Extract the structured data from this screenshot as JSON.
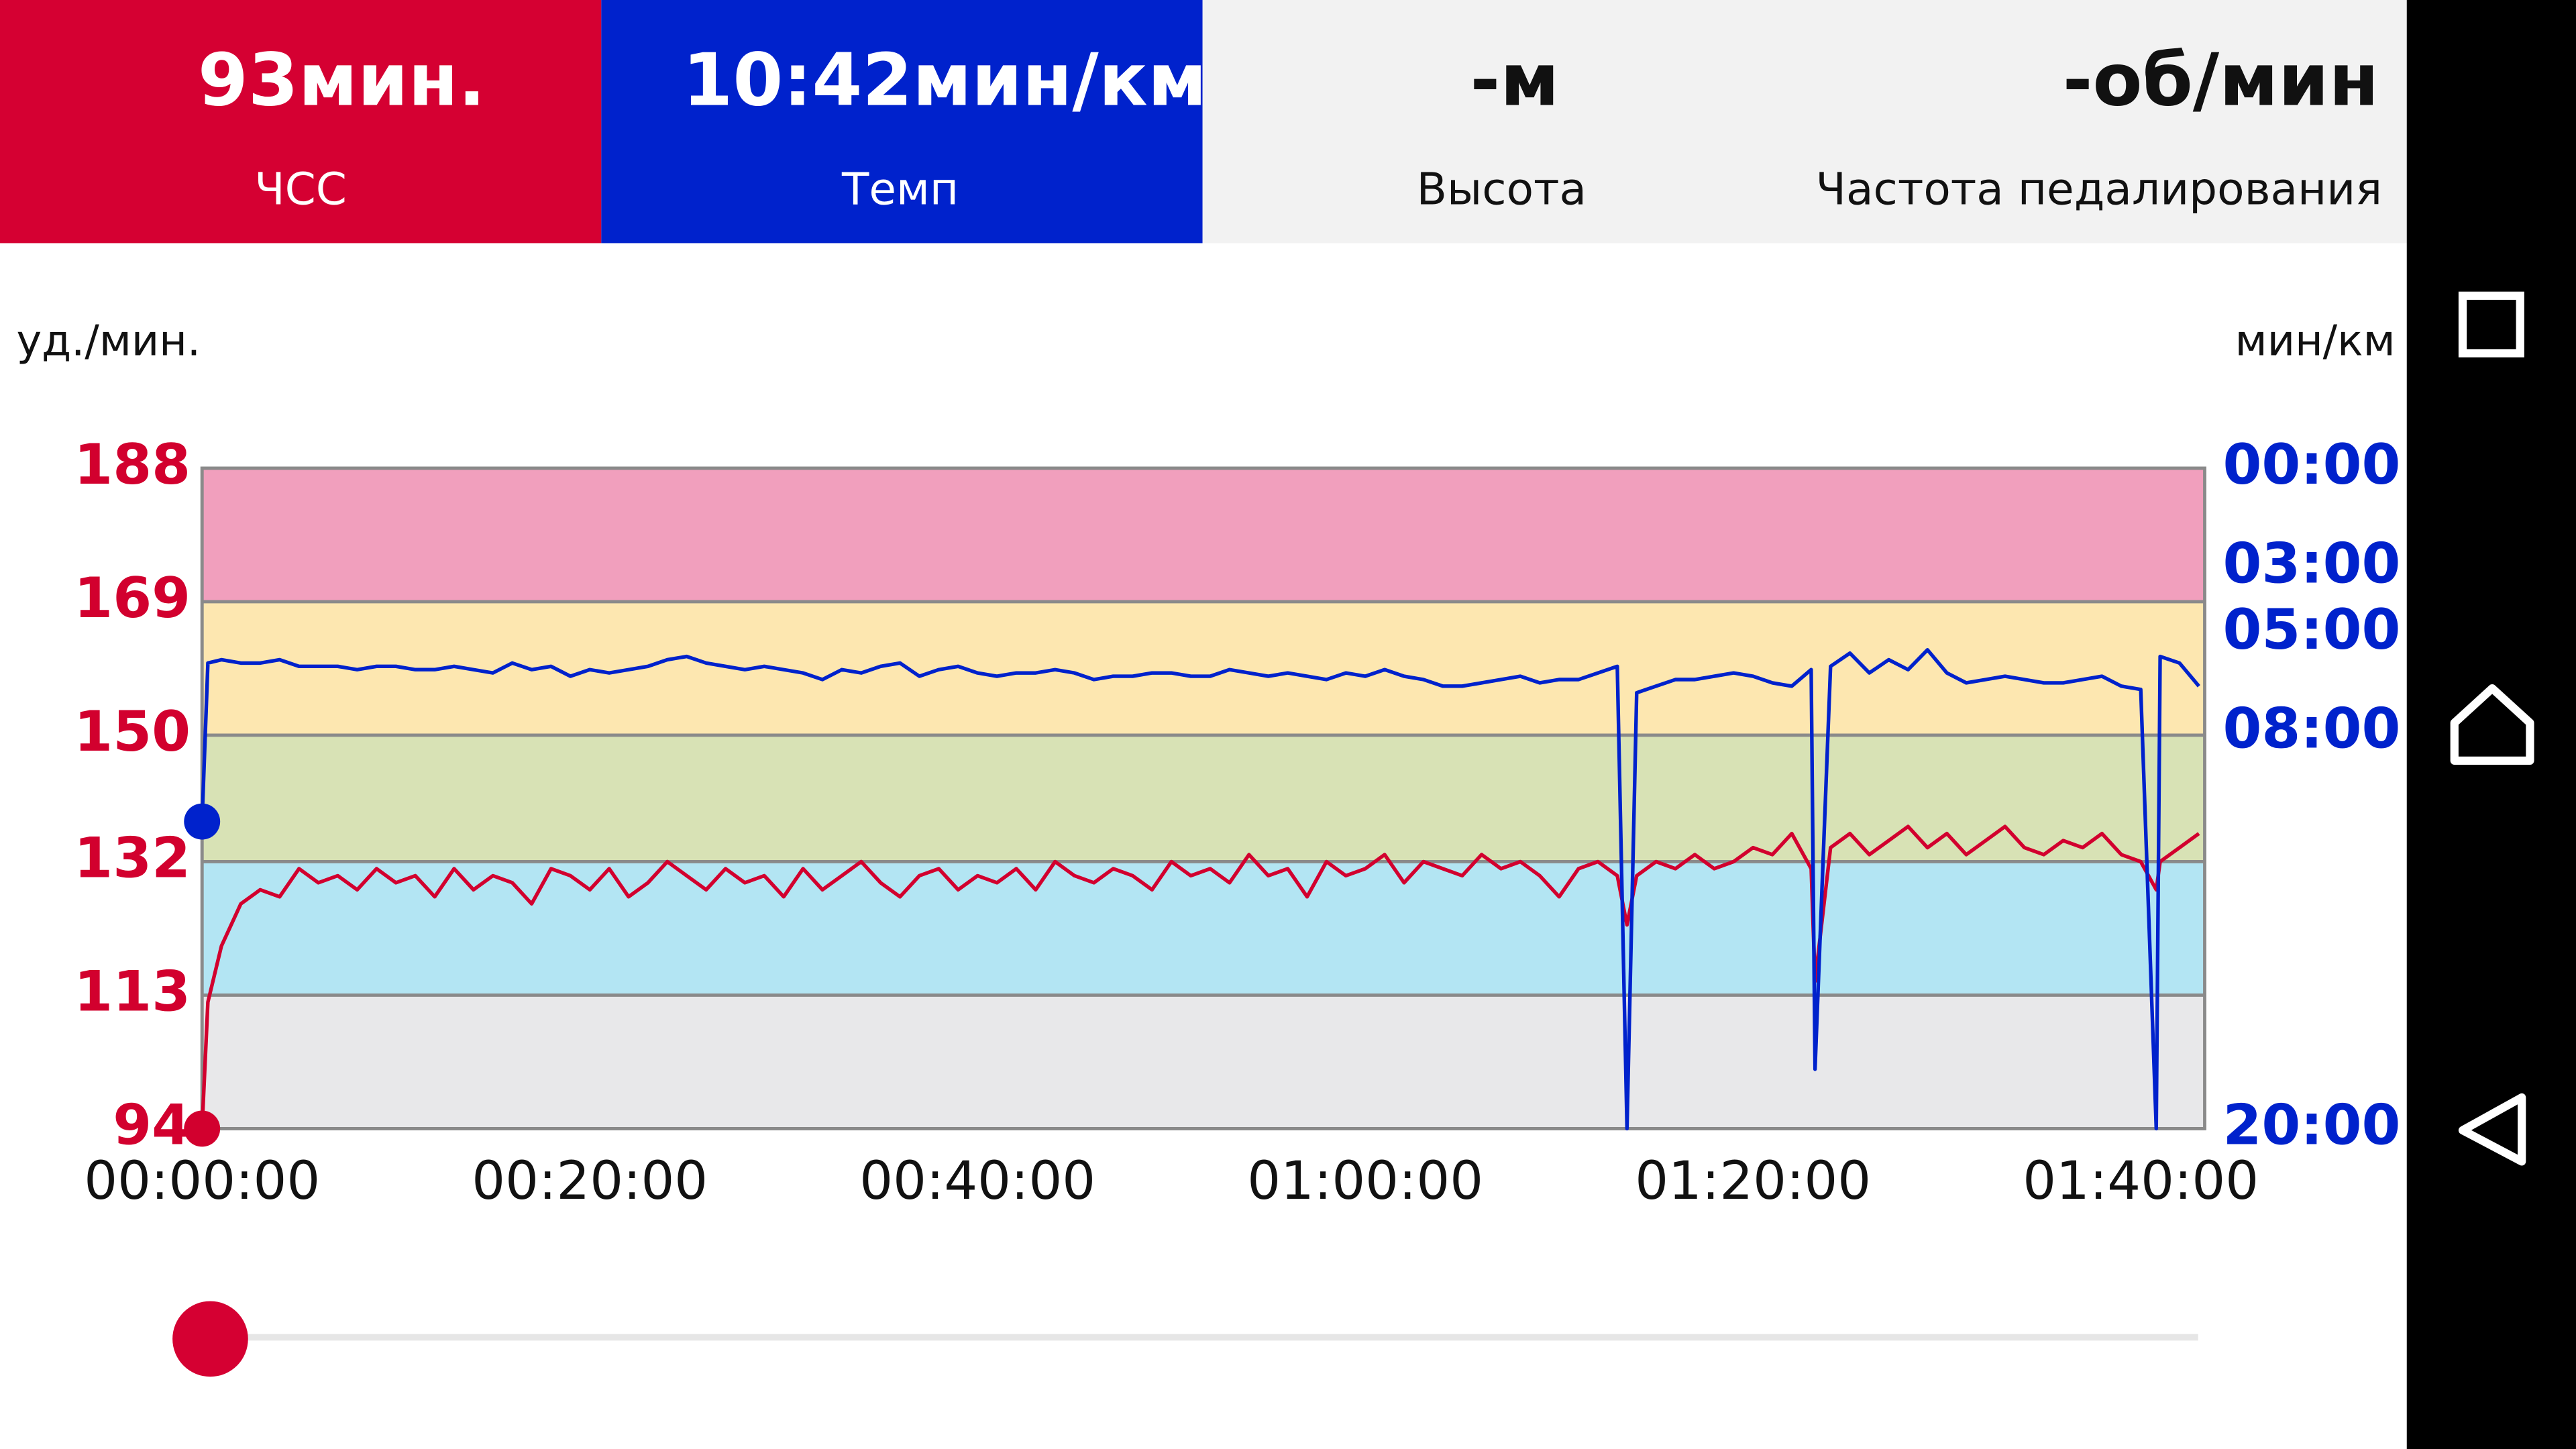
{
  "header": {
    "tiles": [
      {
        "value": "93мин.",
        "label": "ЧСС",
        "background": "#d50032",
        "text_color": "#ffffff"
      },
      {
        "value": "10:42мин/км",
        "label": "Темп",
        "background": "#0022cc",
        "text_color": "#ffffff"
      },
      {
        "value": "-м",
        "label": "Высота",
        "background": "#f2f2f2",
        "text_color": "#111111"
      },
      {
        "value": "-об/мин",
        "label": "Частота педалирования",
        "background": "#f2f2f2",
        "text_color": "#111111"
      }
    ]
  },
  "chart_data": {
    "type": "line",
    "y_label": "уд./мин.",
    "y2_label": "мин/км",
    "x": [
      0,
      0.3,
      1,
      2,
      3,
      4,
      5,
      6,
      7,
      8,
      9,
      10,
      11,
      12,
      13,
      14,
      15,
      16,
      17,
      18,
      19,
      20,
      21,
      22,
      23,
      24,
      25,
      26,
      27,
      28,
      29,
      30,
      31,
      32,
      33,
      34,
      35,
      36,
      37,
      38,
      39,
      40,
      41,
      42,
      43,
      44,
      45,
      46,
      47,
      48,
      49,
      50,
      51,
      52,
      53,
      54,
      55,
      56,
      57,
      58,
      59,
      60,
      61,
      62,
      63,
      64,
      65,
      66,
      67,
      68,
      69,
      70,
      71,
      72,
      73,
      73.5,
      74,
      75,
      76,
      77,
      78,
      79,
      80,
      81,
      82,
      83,
      83.2,
      84,
      85,
      86,
      87,
      88,
      89,
      90,
      91,
      92,
      93,
      94,
      95,
      96,
      97,
      98,
      99,
      100,
      100.8,
      101,
      102,
      103
    ],
    "xlim": [
      0,
      103.3
    ],
    "xticks": [
      {
        "value": 0,
        "label": "00:00:00"
      },
      {
        "value": 20,
        "label": "00:20:00"
      },
      {
        "value": 40,
        "label": "00:40:00"
      },
      {
        "value": 60,
        "label": "01:00:00"
      },
      {
        "value": 80,
        "label": "01:20:00"
      },
      {
        "value": 100,
        "label": "01:40:00"
      }
    ],
    "ylim": [
      94,
      188
    ],
    "yticks": [
      94,
      113,
      132,
      150,
      169,
      188
    ],
    "y2lim": [
      20,
      0
    ],
    "y2ticks": [
      {
        "value": 0,
        "label": "00:00"
      },
      {
        "value": 3,
        "label": "03:00"
      },
      {
        "value": 5,
        "label": "05:00"
      },
      {
        "value": 8,
        "label": "08:00"
      },
      {
        "value": 20,
        "label": "20:00"
      }
    ],
    "zone_colors": [
      "#e8e8ea",
      "#b3e5f3",
      "#d8e2b5",
      "#fde7b0",
      "#f19fbd"
    ],
    "y_tick_color": "#d2002e",
    "y2_tick_color": "#0022cc",
    "series": [
      {
        "color": "#d2002e",
        "axis": "y",
        "values": [
          94,
          112,
          120,
          126,
          128,
          127,
          131,
          129,
          130,
          128,
          131,
          129,
          130,
          127,
          131,
          128,
          130,
          129,
          126,
          131,
          130,
          128,
          131,
          127,
          129,
          132,
          130,
          128,
          131,
          129,
          130,
          127,
          131,
          128,
          130,
          132,
          129,
          127,
          130,
          131,
          128,
          130,
          129,
          131,
          128,
          132,
          130,
          129,
          131,
          130,
          128,
          132,
          130,
          131,
          129,
          133,
          130,
          131,
          127,
          132,
          130,
          131,
          133,
          129,
          132,
          131,
          130,
          133,
          131,
          132,
          130,
          127,
          131,
          132,
          130,
          123,
          130,
          132,
          131,
          133,
          131,
          132,
          134,
          133,
          136,
          131,
          115,
          134,
          136,
          133,
          135,
          137,
          134,
          136,
          133,
          135,
          137,
          134,
          133,
          135,
          134,
          136,
          133,
          132,
          128,
          132,
          134,
          136
        ]
      },
      {
        "color": "#0022cc",
        "axis": "y2",
        "values": [
          10.7,
          5.9,
          5.8,
          5.9,
          5.9,
          5.8,
          6.0,
          6.0,
          6.0,
          6.1,
          6.0,
          6.0,
          6.1,
          6.1,
          6.0,
          6.1,
          6.2,
          5.9,
          6.1,
          6.0,
          6.3,
          6.1,
          6.2,
          6.1,
          6.0,
          5.8,
          5.7,
          5.9,
          6.0,
          6.1,
          6.0,
          6.1,
          6.2,
          6.4,
          6.1,
          6.2,
          6.0,
          5.9,
          6.3,
          6.1,
          6.0,
          6.2,
          6.3,
          6.2,
          6.2,
          6.1,
          6.2,
          6.4,
          6.3,
          6.3,
          6.2,
          6.2,
          6.3,
          6.3,
          6.1,
          6.2,
          6.3,
          6.2,
          6.3,
          6.4,
          6.2,
          6.3,
          6.1,
          6.3,
          6.4,
          6.6,
          6.6,
          6.5,
          6.4,
          6.3,
          6.5,
          6.4,
          6.4,
          6.2,
          6.0,
          20,
          6.8,
          6.6,
          6.4,
          6.4,
          6.3,
          6.2,
          6.3,
          6.5,
          6.6,
          6.1,
          18.2,
          6.0,
          5.6,
          6.2,
          5.8,
          6.1,
          5.5,
          6.2,
          6.5,
          6.4,
          6.3,
          6.4,
          6.5,
          6.5,
          6.4,
          6.3,
          6.6,
          6.7,
          20,
          5.7,
          5.9,
          6.6
        ]
      }
    ]
  }
}
